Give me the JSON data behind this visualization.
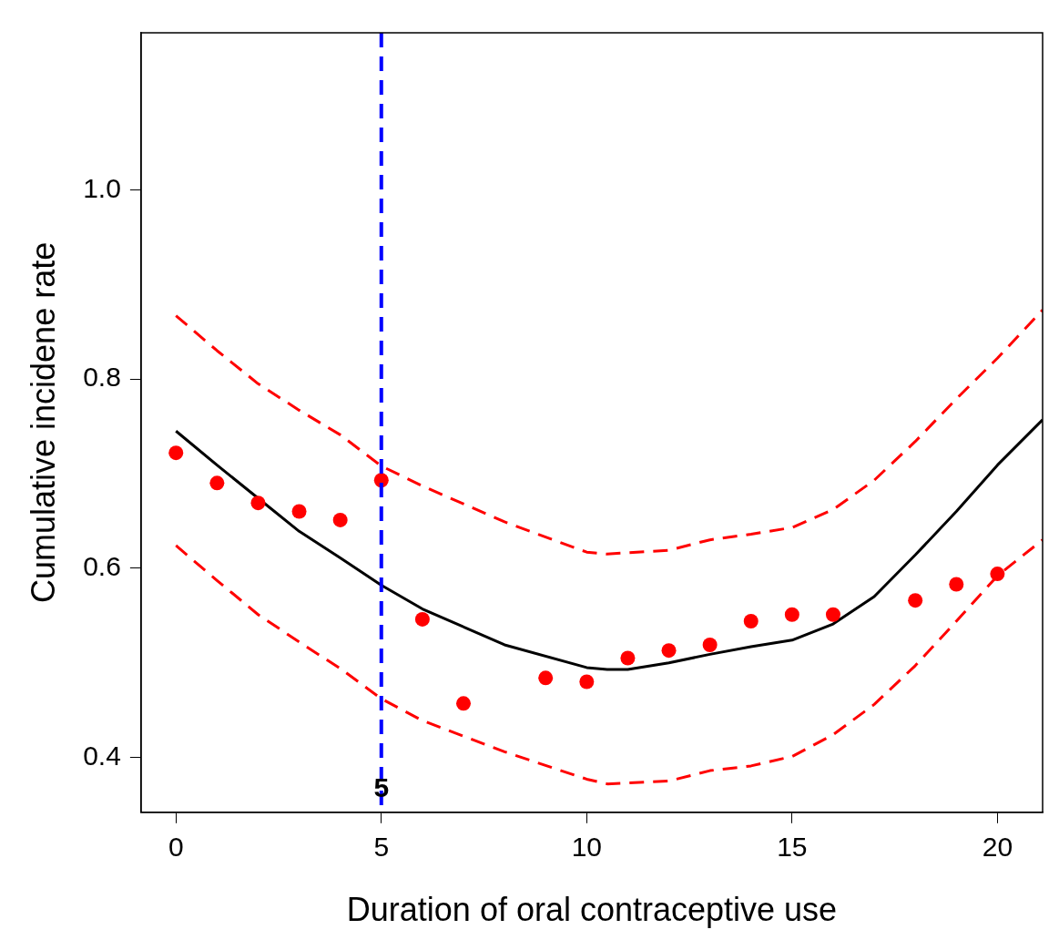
{
  "chart_data": {
    "type": "scatter",
    "xlabel": "Duration of oral contraceptive use",
    "ylabel": "Cumulative incidene rate",
    "xlim": [
      -0.85,
      21.1
    ],
    "xticks": [
      0,
      5,
      10,
      15,
      20
    ],
    "ylim": [
      0.342,
      1.166
    ],
    "yticks": [
      0.4,
      0.6,
      0.8,
      {
        "value": 1.0,
        "label": "1.0"
      }
    ],
    "grid": false,
    "legend": false,
    "series": [
      {
        "color": "#ff0000",
        "marker": "circle",
        "x": [
          0,
          1,
          2,
          3,
          4,
          5,
          6,
          7,
          9,
          10,
          11,
          12,
          13,
          14,
          15,
          16,
          18,
          19,
          20
        ],
        "values": [
          0.722,
          0.69,
          0.669,
          0.66,
          0.651,
          0.693,
          0.546,
          0.457,
          0.484,
          0.48,
          0.505,
          0.513,
          0.519,
          0.544,
          0.551,
          0.551,
          0.566,
          0.583,
          0.594
        ]
      },
      {
        "type": "line",
        "color": "#000000",
        "line_style": "solid",
        "x": [
          0,
          1,
          2,
          3,
          4,
          5,
          6,
          8,
          10,
          10.5,
          11,
          12,
          13,
          14,
          15,
          16,
          17,
          18,
          19,
          20,
          21.1
        ],
        "values": [
          0.745,
          0.709,
          0.674,
          0.639,
          0.611,
          0.582,
          0.557,
          0.519,
          0.495,
          0.493,
          0.493,
          0.5,
          0.509,
          0.517,
          0.524,
          0.541,
          0.57,
          0.614,
          0.66,
          0.709,
          0.757
        ]
      },
      {
        "type": "line",
        "color": "#ff0000",
        "line_style": "dashed",
        "x": [
          0,
          1,
          2,
          3,
          4,
          5,
          6,
          8,
          10,
          10.5,
          12,
          13,
          14,
          15,
          16,
          17,
          18,
          19,
          20,
          21.1
        ],
        "values": [
          0.867,
          0.83,
          0.795,
          0.767,
          0.741,
          0.708,
          0.687,
          0.649,
          0.617,
          0.615,
          0.619,
          0.63,
          0.636,
          0.643,
          0.662,
          0.693,
          0.734,
          0.779,
          0.822,
          0.873
        ]
      },
      {
        "type": "line",
        "color": "#ff0000",
        "line_style": "dashed",
        "x": [
          0,
          1,
          2,
          3,
          4,
          5,
          6,
          8,
          10,
          10.5,
          12,
          13,
          14,
          15,
          16,
          17,
          18,
          19,
          20,
          21.1
        ],
        "values": [
          0.624,
          0.587,
          0.551,
          0.522,
          0.494,
          0.462,
          0.439,
          0.406,
          0.377,
          0.372,
          0.375,
          0.386,
          0.391,
          0.401,
          0.424,
          0.456,
          0.497,
          0.544,
          0.592,
          0.63
        ]
      }
    ],
    "ref_lines": [
      {
        "axis": "x",
        "value": 5,
        "label": "5",
        "color": "#0000ff",
        "line_style": "dashed"
      }
    ]
  }
}
